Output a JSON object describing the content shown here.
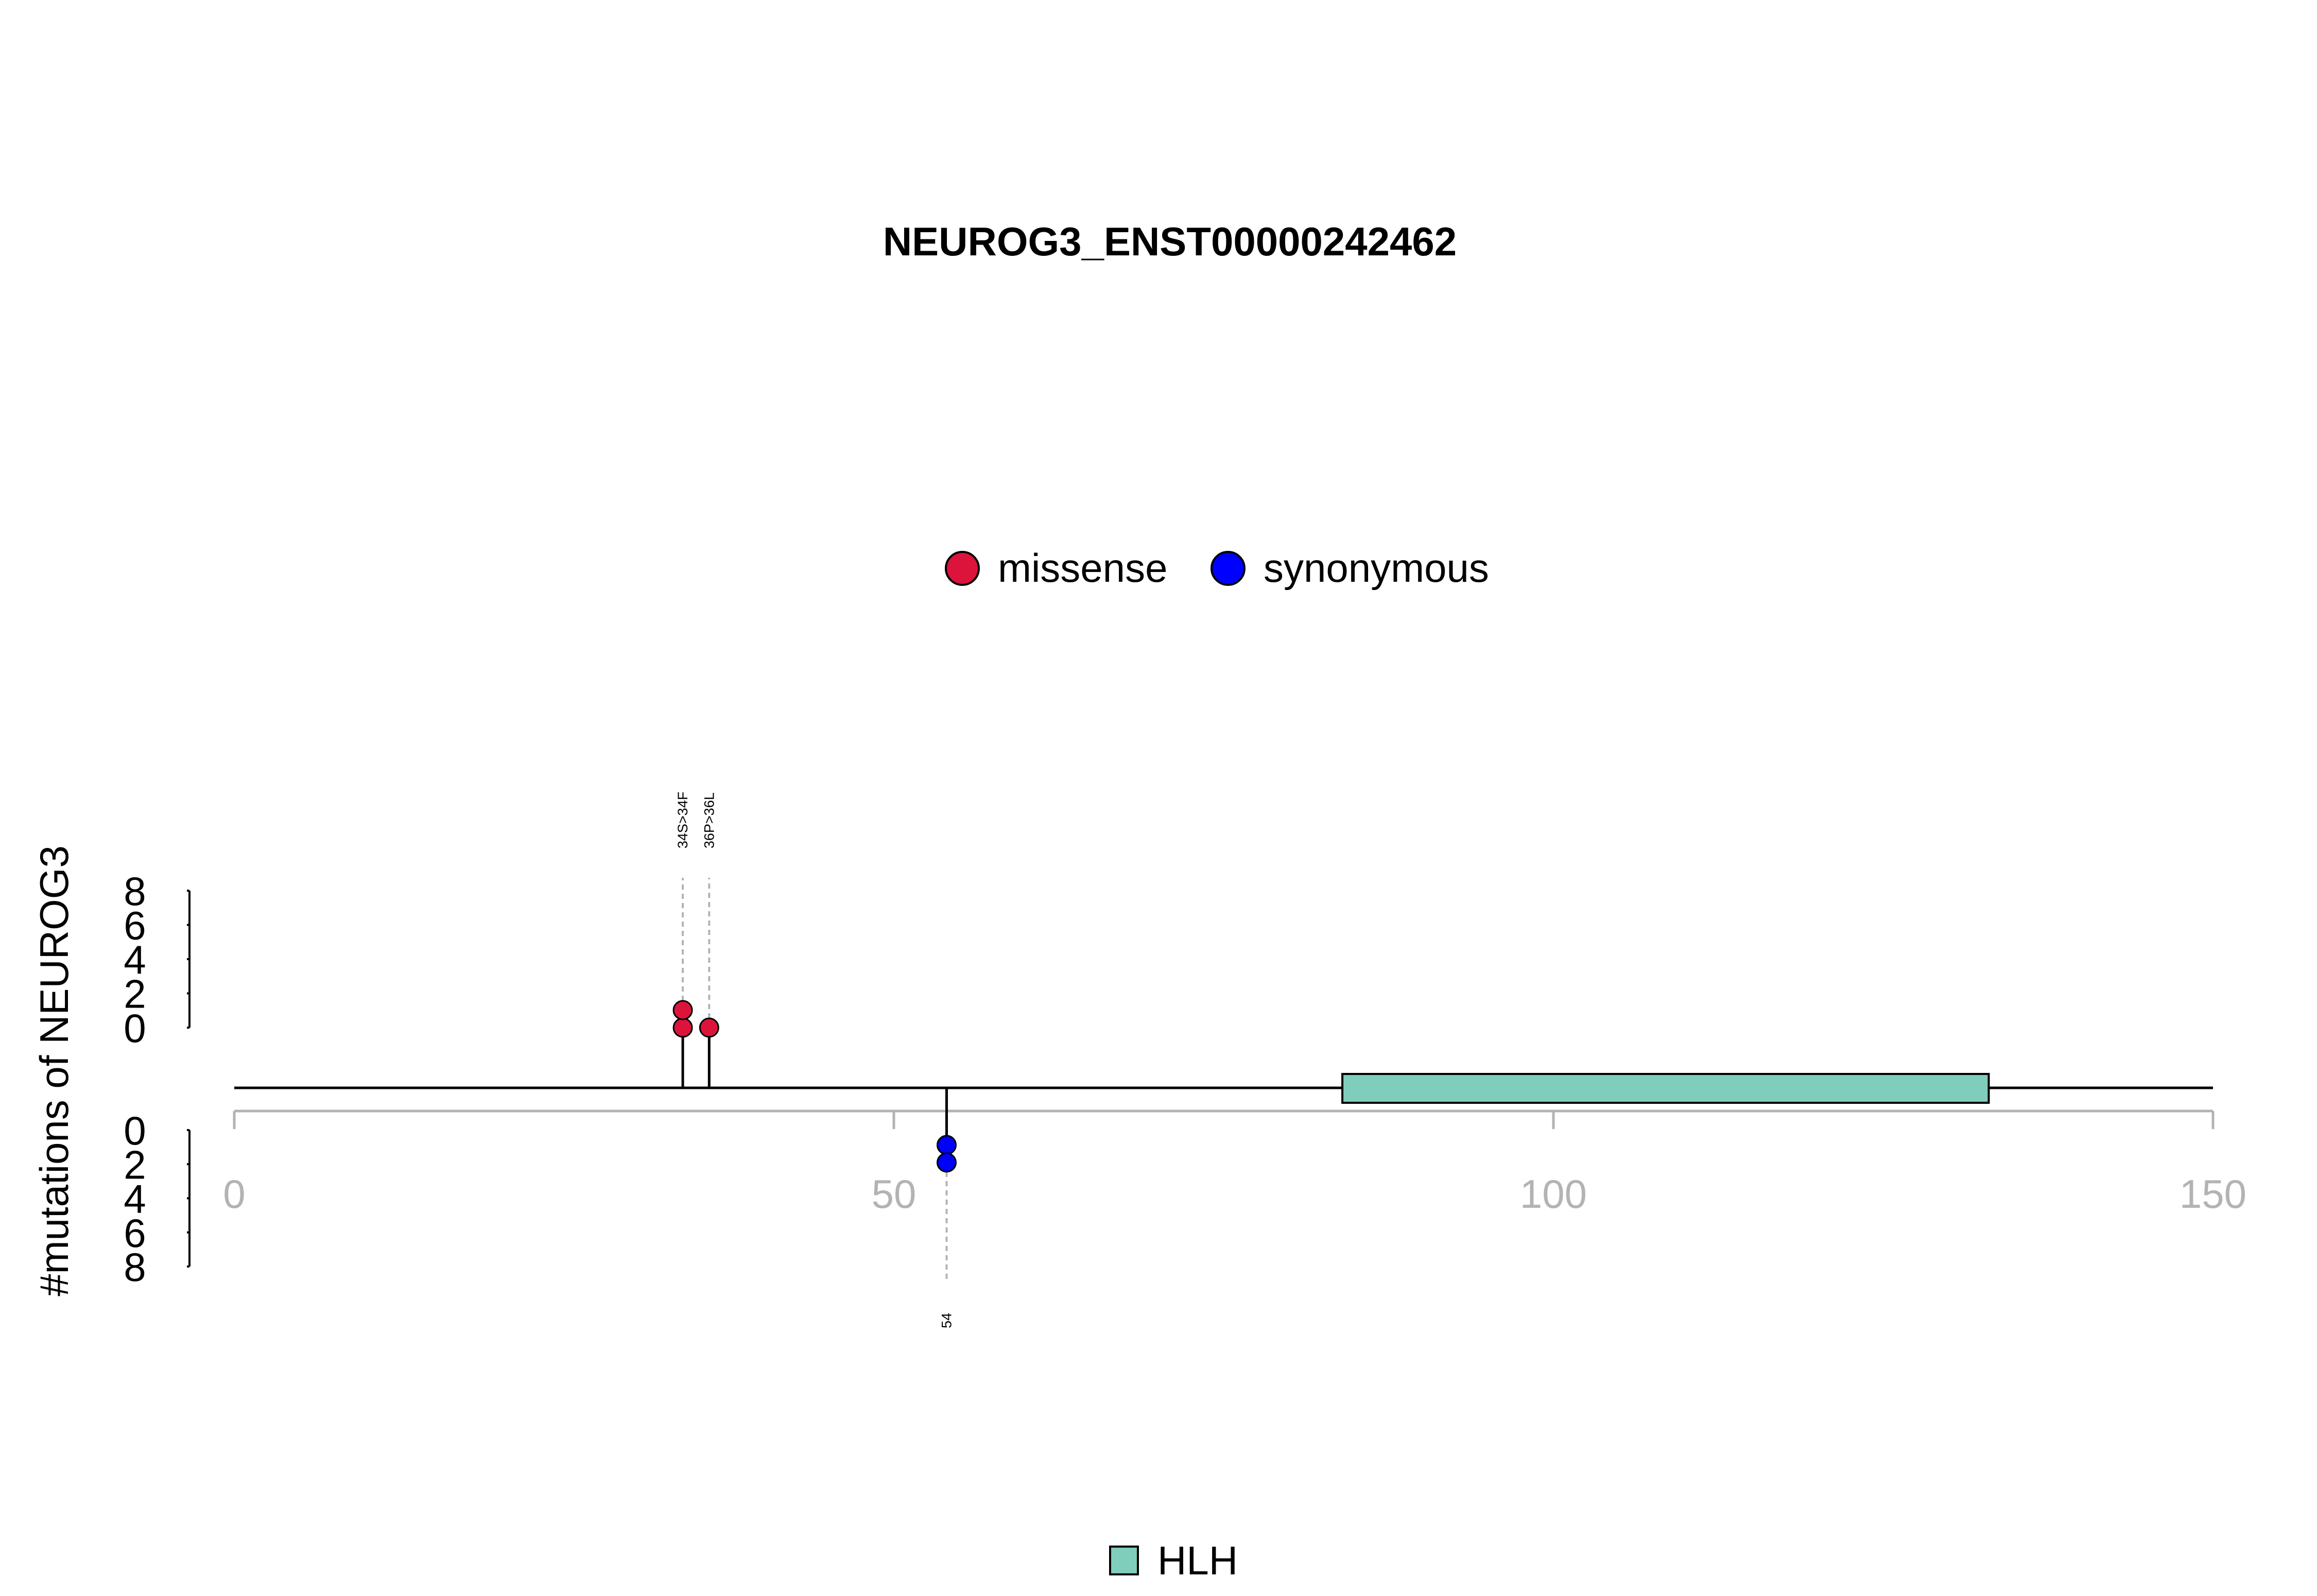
{
  "chart_data": {
    "type": "lollipop",
    "title": "NEUROG3_ENST00000242462",
    "ylabel": "#mutations of NEUROG3",
    "xlim": [
      0,
      150
    ],
    "xticks": [
      0,
      50,
      100,
      150
    ],
    "yticks_top": [
      0,
      2,
      4,
      6,
      8
    ],
    "yticks_bottom": [
      0,
      2,
      4,
      6,
      8
    ],
    "ylim": [
      0,
      8
    ],
    "legend_mutations": [
      {
        "label": "missense",
        "color": "#dc143c"
      },
      {
        "label": "synonymous",
        "color": "#0000ff"
      }
    ],
    "domains": [
      {
        "name": "HLH",
        "start": 84,
        "end": 133,
        "color": "#7fcdbb"
      }
    ],
    "mutations_top": [
      {
        "position": 34,
        "count": 2,
        "type": "missense",
        "label": "34S>34F"
      },
      {
        "position": 36,
        "count": 1,
        "type": "missense",
        "label": "36P>36L"
      }
    ],
    "mutations_bottom": [
      {
        "position": 54,
        "count": 2,
        "type": "synonymous",
        "label": "54"
      }
    ]
  }
}
